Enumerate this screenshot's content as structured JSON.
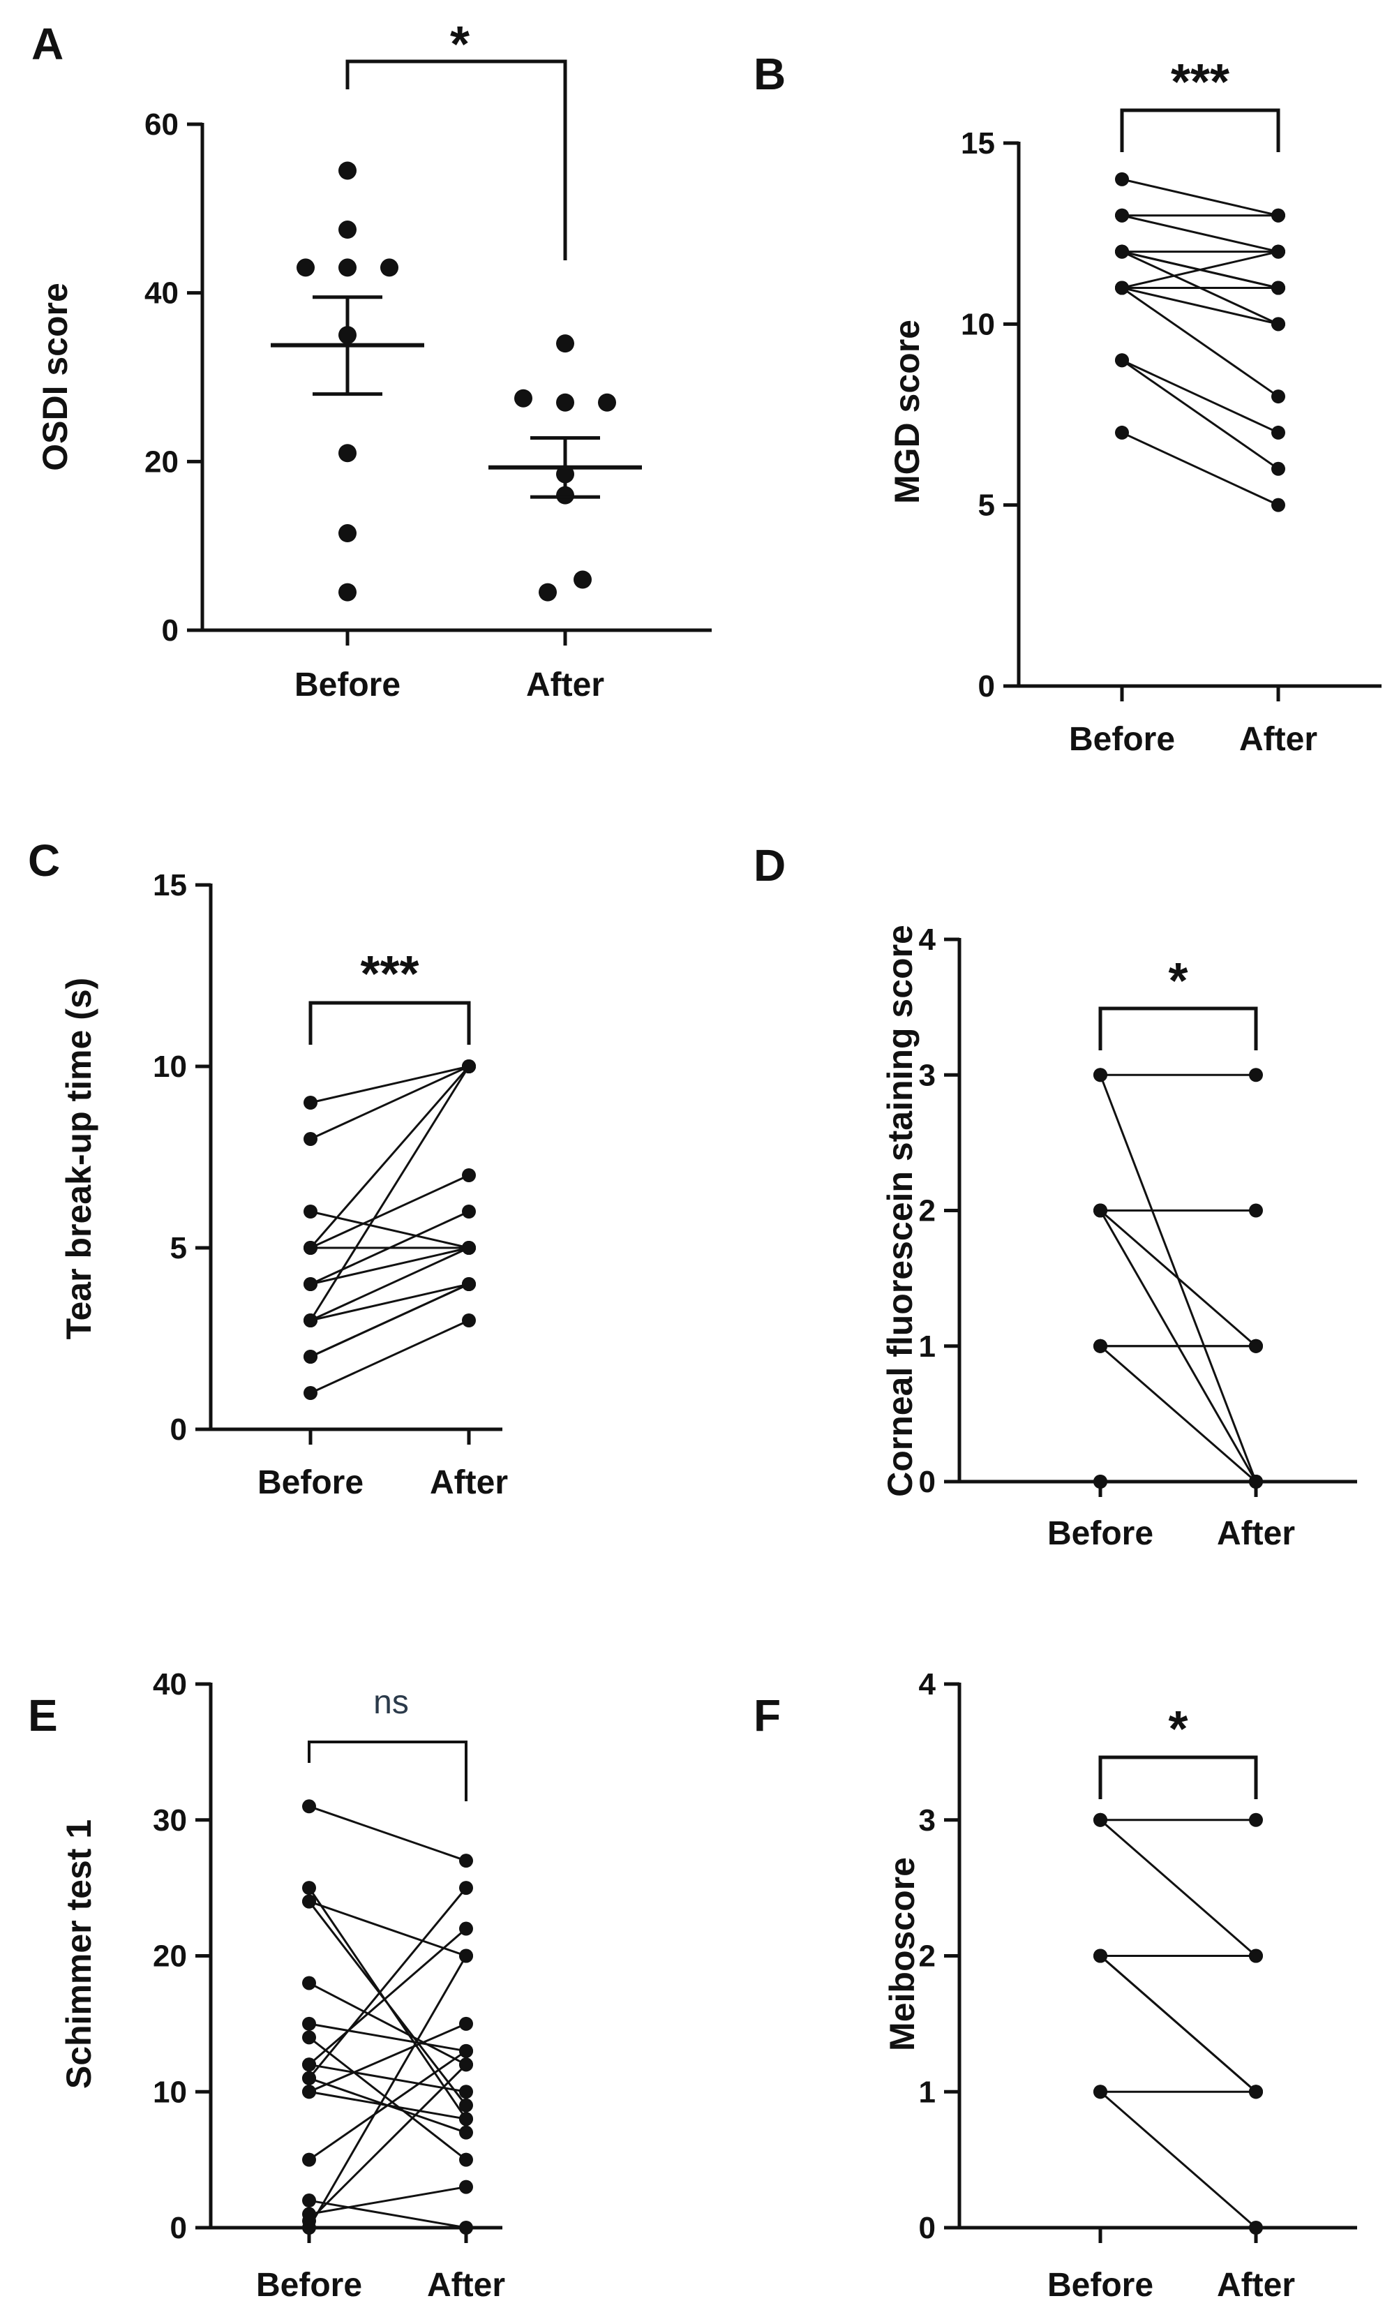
{
  "figure": {
    "type": "multi-panel scientific figure"
  },
  "chart_data": [
    {
      "panel": "A",
      "type": "scatter",
      "ylabel": "OSDI score",
      "categories": [
        "Before",
        "After"
      ],
      "ylim": [
        0,
        60
      ],
      "yticks": [
        0,
        20,
        40,
        60
      ],
      "significance": "*",
      "series": [
        {
          "name": "Before",
          "values": [
            54.5,
            47.5,
            43,
            43,
            43,
            35,
            21,
            11.5,
            4.5
          ],
          "mean": 33.8,
          "sem_low": 28.0,
          "sem_high": 39.5
        },
        {
          "name": "After",
          "values": [
            34,
            27.5,
            27,
            27,
            18.5,
            16,
            6,
            4.5
          ],
          "mean": 19.3,
          "sem_low": 15.8,
          "sem_high": 22.8
        }
      ]
    },
    {
      "panel": "B",
      "type": "line",
      "ylabel": "MGD score",
      "categories": [
        "Before",
        "After"
      ],
      "ylim": [
        0,
        15
      ],
      "yticks": [
        0,
        5,
        10,
        15
      ],
      "significance": "***",
      "pairs": [
        [
          14,
          13
        ],
        [
          13,
          12
        ],
        [
          13,
          13
        ],
        [
          12,
          11
        ],
        [
          12,
          12
        ],
        [
          12,
          11
        ],
        [
          12,
          10
        ],
        [
          11,
          11
        ],
        [
          11,
          10
        ],
        [
          11,
          8
        ],
        [
          11,
          12
        ],
        [
          9,
          7
        ],
        [
          9,
          6
        ],
        [
          7,
          5
        ]
      ]
    },
    {
      "panel": "C",
      "type": "line",
      "ylabel": "Tear break-up time (s)",
      "categories": [
        "Before",
        "After"
      ],
      "ylim": [
        0,
        15
      ],
      "yticks": [
        0,
        5,
        10,
        15
      ],
      "significance": "***",
      "pairs": [
        [
          9,
          10
        ],
        [
          8,
          10
        ],
        [
          6,
          5
        ],
        [
          5,
          10
        ],
        [
          5,
          5
        ],
        [
          5,
          7
        ],
        [
          4,
          5
        ],
        [
          4,
          6
        ],
        [
          3,
          4
        ],
        [
          3,
          5
        ],
        [
          3,
          10
        ],
        [
          2,
          4
        ],
        [
          2,
          4
        ],
        [
          1,
          3
        ]
      ]
    },
    {
      "panel": "D",
      "type": "line",
      "ylabel": "Corneal fluorescein staining score",
      "categories": [
        "Before",
        "After"
      ],
      "ylim": [
        0,
        4
      ],
      "yticks": [
        0,
        1,
        2,
        3,
        4
      ],
      "significance": "*",
      "pairs": [
        [
          3,
          3
        ],
        [
          3,
          0
        ],
        [
          2,
          2
        ],
        [
          2,
          1
        ],
        [
          2,
          0
        ],
        [
          1,
          1
        ],
        [
          1,
          1
        ],
        [
          1,
          0
        ],
        [
          0,
          0
        ],
        [
          0,
          0
        ]
      ]
    },
    {
      "panel": "E",
      "type": "line",
      "ylabel": "Schimmer test 1",
      "categories": [
        "Before",
        "After"
      ],
      "ylim": [
        0,
        40
      ],
      "yticks": [
        0,
        10,
        20,
        30,
        40
      ],
      "significance": "ns",
      "pairs": [
        [
          31,
          27
        ],
        [
          25,
          8
        ],
        [
          24,
          20
        ],
        [
          24,
          9
        ],
        [
          18,
          12
        ],
        [
          15,
          13
        ],
        [
          14,
          5
        ],
        [
          12,
          10
        ],
        [
          12,
          22
        ],
        [
          11,
          25
        ],
        [
          11,
          7
        ],
        [
          10,
          15
        ],
        [
          10,
          8
        ],
        [
          5,
          13
        ],
        [
          2,
          0
        ],
        [
          1,
          3
        ],
        [
          0.5,
          12
        ],
        [
          0,
          20
        ]
      ]
    },
    {
      "panel": "F",
      "type": "line",
      "ylabel": "Meiboscore",
      "categories": [
        "Before",
        "After"
      ],
      "ylim": [
        0,
        4
      ],
      "yticks": [
        0,
        1,
        2,
        3,
        4
      ],
      "significance": "*",
      "pairs": [
        [
          3,
          3
        ],
        [
          3,
          2
        ],
        [
          2,
          2
        ],
        [
          2,
          1
        ],
        [
          2,
          1
        ],
        [
          1,
          1
        ],
        [
          1,
          0
        ]
      ]
    }
  ]
}
